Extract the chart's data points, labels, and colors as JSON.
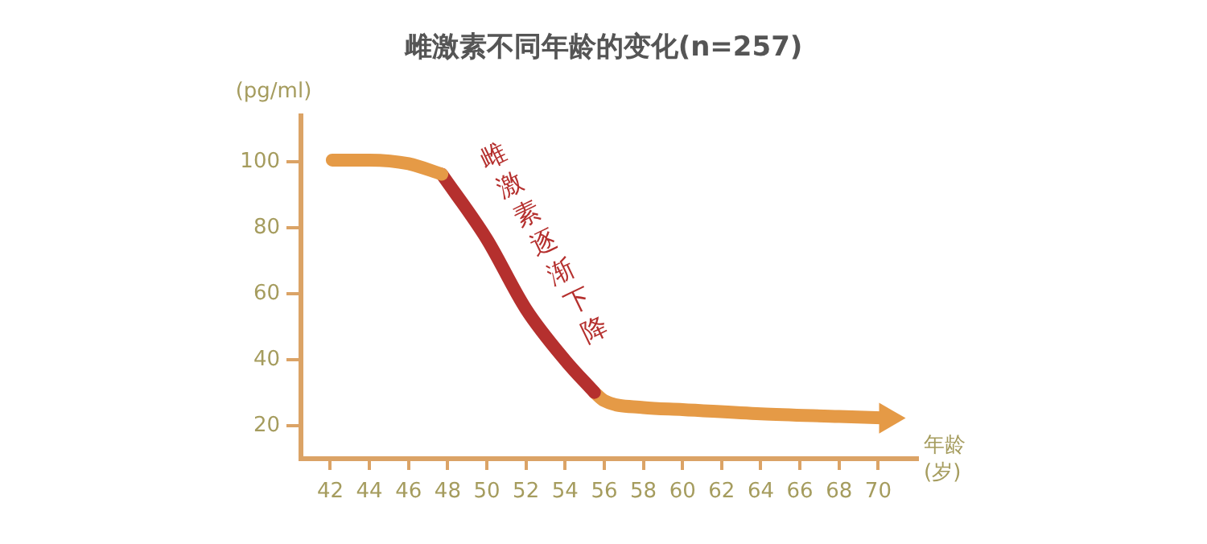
{
  "chart_data": {
    "type": "line",
    "title": "雌激素不同年龄的变化(n=257)",
    "ylabel": "(pg/ml)",
    "xlabel": "年龄\n(岁)",
    "annotations": [
      "雌激素逐渐下降"
    ],
    "series": [
      {
        "color": "#e59a46",
        "x": [
          42.1,
          44,
          46,
          47.7
        ],
        "values": [
          100.6,
          100.6,
          99.5,
          96.3
        ]
      },
      {
        "color": "#b5302e",
        "x": [
          47.7,
          50,
          52,
          54,
          55.5
        ],
        "values": [
          96.3,
          76.6,
          55.4,
          39.9,
          30.1
        ]
      },
      {
        "color": "#e59a46",
        "x": [
          55.5,
          56,
          58,
          60,
          64,
          68,
          70.5
        ],
        "values": [
          30.1,
          27.6,
          25.5,
          24.9,
          23.6,
          22.8,
          22.3
        ]
      }
    ],
    "xlim": [
      40.5,
      72
    ],
    "xticks": [
      42,
      44,
      46,
      48,
      50,
      52,
      54,
      56,
      58,
      60,
      62,
      64,
      66,
      68,
      70
    ],
    "ylim": [
      10,
      114
    ],
    "yticks": [
      20,
      40,
      60,
      80,
      100
    ],
    "grid": false,
    "legend": false,
    "marker": "none",
    "line_style": "solid"
  }
}
